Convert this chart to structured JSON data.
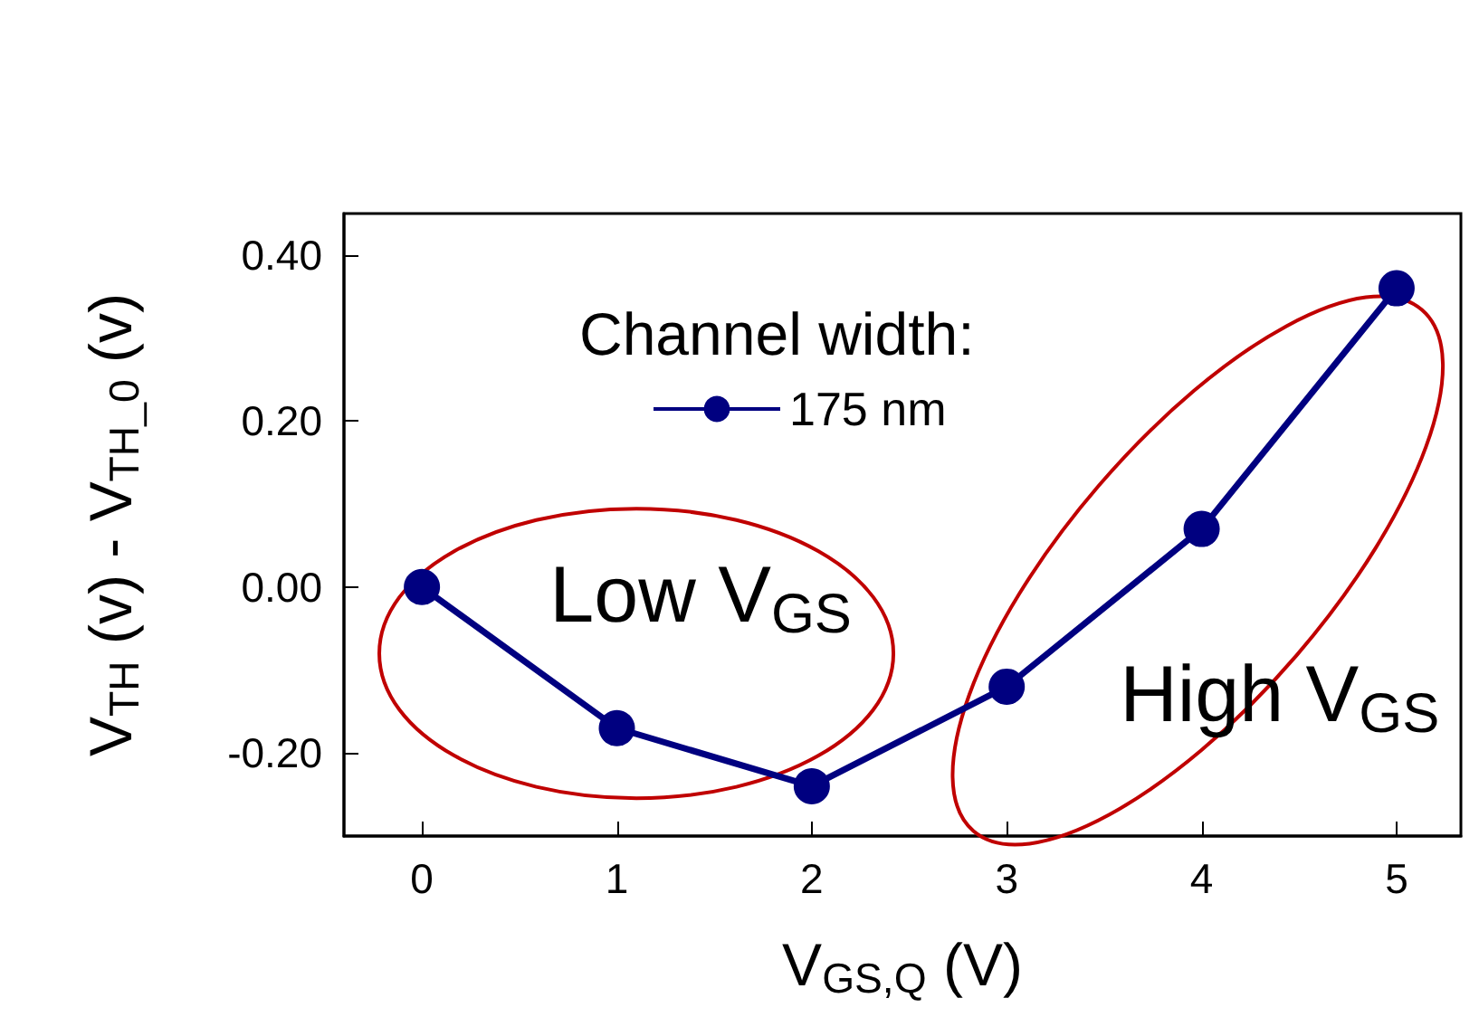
{
  "chart_data": {
    "type": "line",
    "xlabel": "V$_{GS,Q}$ (V)",
    "ylabel": "V$_{TH}$ (v) - V$_{TH_0}$ (v)",
    "legend_title": "Channel width:",
    "x": [
      0,
      1,
      2,
      3,
      4,
      5
    ],
    "series": [
      {
        "name": "175 nm",
        "color": "#000080",
        "values": [
          0,
          -0.17,
          -0.24,
          -0.12,
          0.07,
          0.36
        ]
      }
    ],
    "xlim": [
      -0.4,
      5.33
    ],
    "xticks": [
      0,
      1,
      2,
      3,
      4,
      5
    ],
    "ylim": [
      -0.3,
      0.45
    ],
    "yticks": [
      {
        "value": -0.2,
        "label": "-0.20"
      },
      {
        "value": 0,
        "label": "0.00"
      },
      {
        "value": 0.2,
        "label": "0.20"
      },
      {
        "value": 0.4,
        "label": "0.40"
      }
    ],
    "annotations": [
      "Low V$_{GS}$",
      "High V$_{GS}$"
    ],
    "legend": "top",
    "marker": "circle",
    "line_style": "solid",
    "grid": false
  }
}
